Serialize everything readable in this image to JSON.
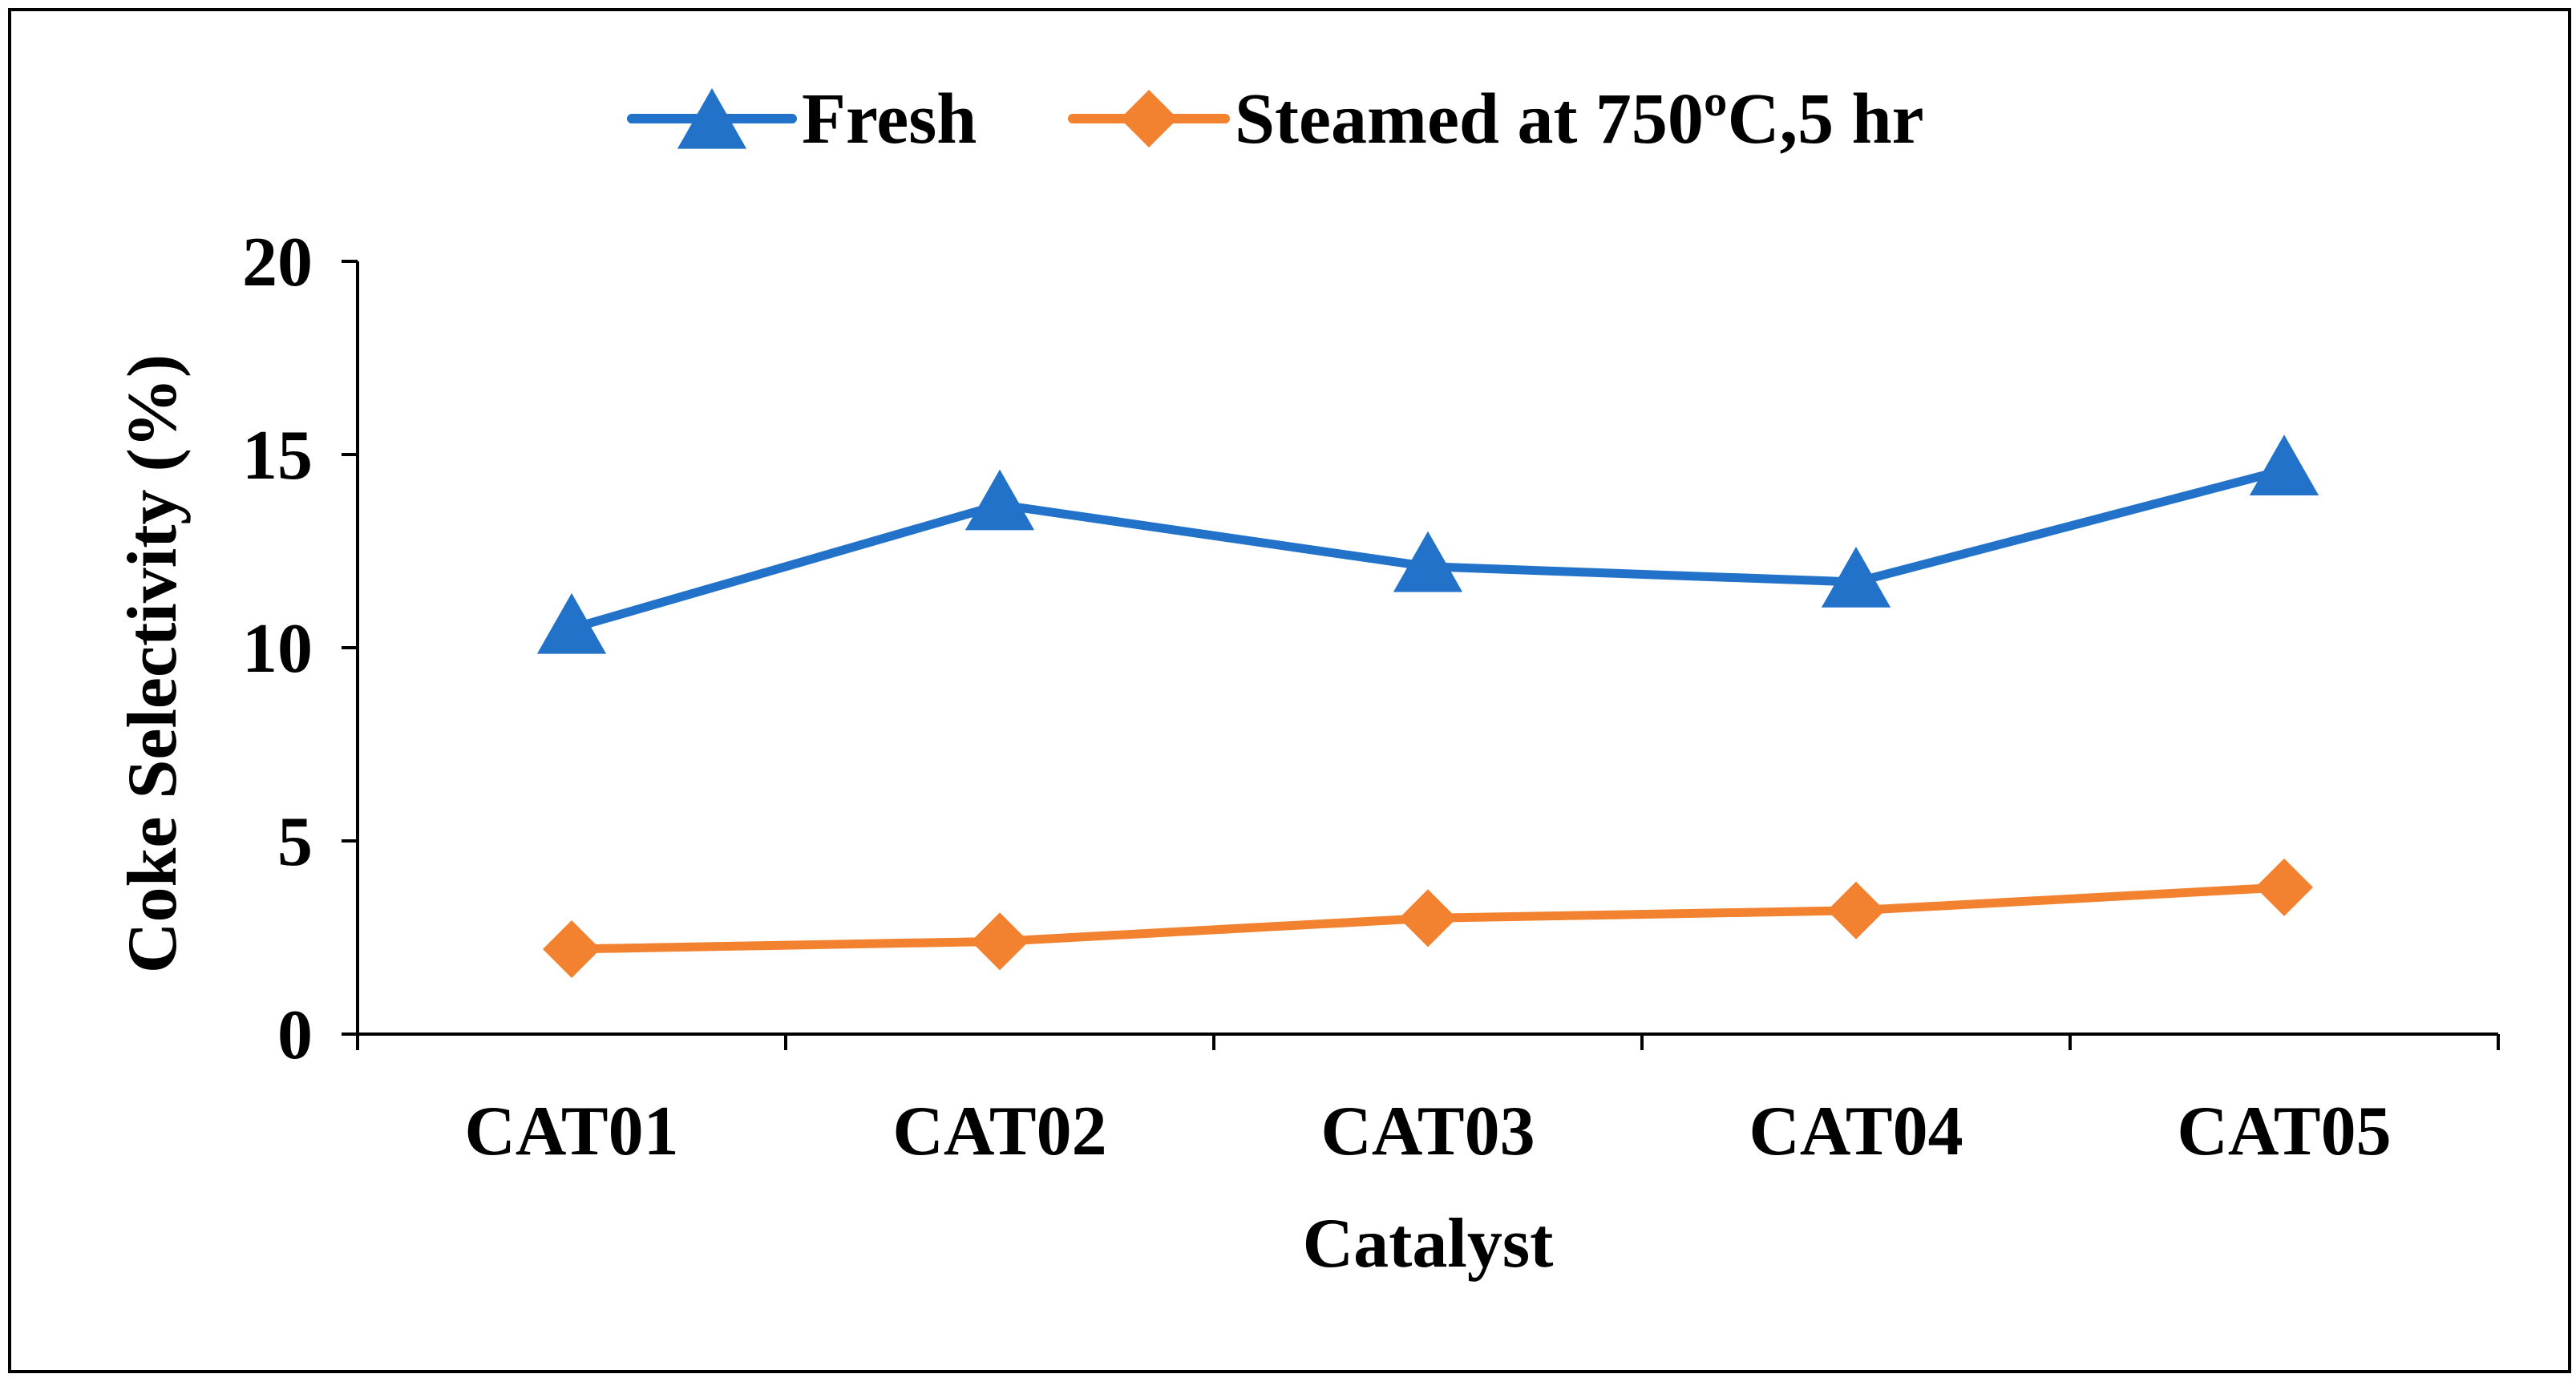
{
  "chart_data": {
    "type": "line",
    "title": "",
    "xlabel": "Catalyst",
    "ylabel": "Coke Selectivity (%)",
    "categories": [
      "CAT01",
      "CAT02",
      "CAT03",
      "CAT04",
      "CAT05"
    ],
    "ylim": [
      0,
      20
    ],
    "yticks": [
      0,
      5,
      10,
      15,
      20
    ],
    "ytick_labels": [
      "0",
      "5",
      "10",
      "15",
      "20"
    ],
    "grid": false,
    "legend_position": "top-center",
    "series": [
      {
        "name": "Fresh",
        "marker": "triangle",
        "color": "#2172C8",
        "values": [
          10.5,
          13.7,
          12.1,
          11.7,
          14.6
        ]
      },
      {
        "name": "Steamed at 750ºC,5 hr",
        "marker": "diamond",
        "color": "#F28230",
        "values": [
          2.2,
          2.4,
          3.0,
          3.2,
          3.8
        ]
      }
    ]
  }
}
